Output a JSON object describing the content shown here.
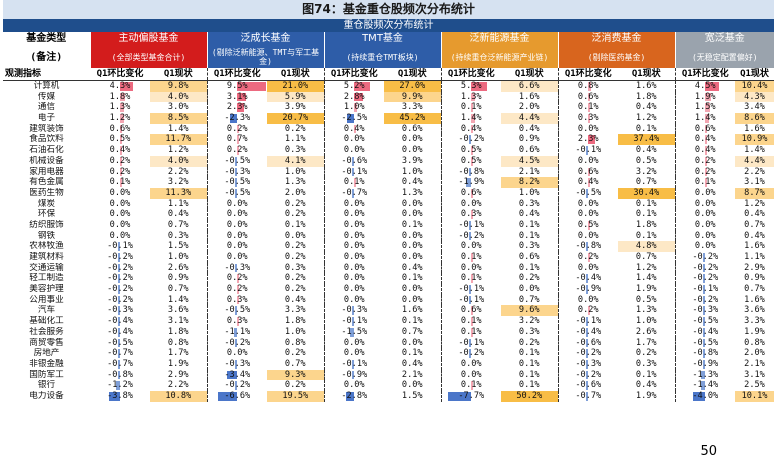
{
  "figure_title": "图74：基金重仓股频次分布统计",
  "table_banner": "重仓股频次分布统计",
  "labels": {
    "fund_type": "基金类型",
    "notes": "(备注)",
    "metric": "观测指标",
    "qoq": "Q1环比变化",
    "current": "Q1现状"
  },
  "page_number": "50",
  "group_colors": [
    "#d31c1c",
    "#2e5da8",
    "#2e5da8",
    "#e69a2e",
    "#d8651e",
    "#9aa3ad"
  ],
  "groups": [
    {
      "name": "主动偏股基金",
      "note": "(全部类型基金合计)"
    },
    {
      "name": "泛成长基金",
      "note": "(剔除泛新能源、TMT与军工基金)"
    },
    {
      "name": "TMT基金",
      "note": "(持续重仓TMT板块)"
    },
    {
      "name": "泛新能源基金",
      "note": "(持续重仓泛新能源产业链)"
    },
    {
      "name": "泛消费基金",
      "note": "(剔除医药基金)"
    },
    {
      "name": "宽泛基金",
      "note": "(无稳定配置偏好)"
    }
  ],
  "rows": [
    {
      "industry": "计算机",
      "values": [
        "4.3%",
        "9.8%",
        "9.5%",
        "21.0%",
        "5.2%",
        "27.0%",
        "5.3%",
        "6.6%",
        "0.8%",
        "1.6%",
        "4.5%",
        "10.4%"
      ]
    },
    {
      "industry": "传媒",
      "values": [
        "1.8%",
        "4.0%",
        "3.1%",
        "5.9%",
        "2.8%",
        "9.9%",
        "1.3%",
        "1.6%",
        "0.6%",
        "1.8%",
        "1.9%",
        "4.3%"
      ]
    },
    {
      "industry": "通信",
      "values": [
        "1.3%",
        "3.0%",
        "2.3%",
        "3.9%",
        "1.0%",
        "3.3%",
        "0.1%",
        "2.0%",
        "0.1%",
        "0.4%",
        "1.5%",
        "3.4%"
      ]
    },
    {
      "industry": "电子",
      "values": [
        "1.2%",
        "8.5%",
        "-2.3%",
        "20.7%",
        "-2.5%",
        "45.2%",
        "1.4%",
        "4.4%",
        "0.3%",
        "1.2%",
        "1.4%",
        "8.6%"
      ]
    },
    {
      "industry": "建筑装饰",
      "values": [
        "0.6%",
        "1.4%",
        "0.2%",
        "0.2%",
        "0.4%",
        "0.6%",
        "0.4%",
        "0.4%",
        "0.0%",
        "0.1%",
        "0.6%",
        "1.6%"
      ]
    },
    {
      "industry": "食品饮料",
      "values": [
        "0.5%",
        "11.7%",
        "0.7%",
        "1.1%",
        "0.0%",
        "0.0%",
        "-0.2%",
        "0.9%",
        "2.3%",
        "37.4%",
        "0.4%",
        "10.9%"
      ]
    },
    {
      "industry": "石油石化",
      "values": [
        "0.4%",
        "1.2%",
        "0.2%",
        "0.3%",
        "0.0%",
        "0.0%",
        "0.5%",
        "0.6%",
        "-0.1%",
        "0.4%",
        "0.4%",
        "1.4%"
      ]
    },
    {
      "industry": "机械设备",
      "values": [
        "0.2%",
        "4.0%",
        "-0.5%",
        "4.1%",
        "-0.6%",
        "3.9%",
        "0.5%",
        "4.5%",
        "0.0%",
        "0.5%",
        "0.2%",
        "4.4%"
      ]
    },
    {
      "industry": "家用电器",
      "values": [
        "0.2%",
        "2.2%",
        "-0.3%",
        "1.0%",
        "-0.1%",
        "1.0%",
        "-0.8%",
        "2.1%",
        "0.6%",
        "3.2%",
        "0.2%",
        "2.2%"
      ]
    },
    {
      "industry": "有色金属",
      "values": [
        "0.1%",
        "3.2%",
        "-0.5%",
        "1.3%",
        "0.1%",
        "0.4%",
        "-1.9%",
        "8.2%",
        "0.4%",
        "0.7%",
        "0.1%",
        "3.1%"
      ]
    },
    {
      "industry": "医药生物",
      "values": [
        "0.0%",
        "11.3%",
        "-0.5%",
        "2.0%",
        "-0.7%",
        "1.3%",
        "0.6%",
        "1.0%",
        "-0.5%",
        "30.4%",
        "0.0%",
        "8.7%"
      ]
    },
    {
      "industry": "煤炭",
      "values": [
        "0.0%",
        "1.1%",
        "0.0%",
        "0.2%",
        "0.0%",
        "0.0%",
        "0.0%",
        "0.3%",
        "0.0%",
        "0.1%",
        "0.0%",
        "1.2%"
      ]
    },
    {
      "industry": "环保",
      "values": [
        "0.0%",
        "0.4%",
        "0.0%",
        "0.2%",
        "0.0%",
        "0.0%",
        "0.3%",
        "0.4%",
        "0.0%",
        "0.1%",
        "0.0%",
        "0.4%"
      ]
    },
    {
      "industry": "纺织服饰",
      "values": [
        "0.0%",
        "0.7%",
        "0.0%",
        "0.1%",
        "0.0%",
        "0.1%",
        "-0.1%",
        "0.1%",
        "0.5%",
        "1.8%",
        "0.0%",
        "0.7%"
      ]
    },
    {
      "industry": "钢铁",
      "values": [
        "0.0%",
        "0.3%",
        "0.0%",
        "0.0%",
        "0.0%",
        "0.0%",
        "-0.2%",
        "0.1%",
        "0.0%",
        "0.1%",
        "0.0%",
        "0.4%"
      ]
    },
    {
      "industry": "农林牧渔",
      "values": [
        "-0.1%",
        "1.5%",
        "0.0%",
        "0.2%",
        "0.0%",
        "0.0%",
        "0.0%",
        "0.3%",
        "-0.8%",
        "4.8%",
        "0.0%",
        "1.6%"
      ]
    },
    {
      "industry": "建筑材料",
      "values": [
        "-0.2%",
        "1.0%",
        "0.0%",
        "0.2%",
        "0.0%",
        "0.0%",
        "0.1%",
        "0.6%",
        "0.2%",
        "0.7%",
        "-0.2%",
        "1.1%"
      ]
    },
    {
      "industry": "交通运输",
      "values": [
        "-0.2%",
        "2.6%",
        "-0.3%",
        "0.3%",
        "0.0%",
        "0.4%",
        "0.0%",
        "0.1%",
        "0.0%",
        "1.2%",
        "-0.2%",
        "2.9%"
      ]
    },
    {
      "industry": "轻工制造",
      "values": [
        "-0.2%",
        "0.9%",
        "0.2%",
        "0.2%",
        "0.0%",
        "0.1%",
        "0.1%",
        "0.2%",
        "-0.4%",
        "1.4%",
        "-0.2%",
        "0.9%"
      ]
    },
    {
      "industry": "美容护理",
      "values": [
        "-0.2%",
        "0.7%",
        "0.2%",
        "0.2%",
        "0.0%",
        "0.0%",
        "-0.1%",
        "0.0%",
        "-0.9%",
        "1.9%",
        "-0.1%",
        "0.7%"
      ]
    },
    {
      "industry": "公用事业",
      "values": [
        "-0.2%",
        "1.4%",
        "0.3%",
        "0.4%",
        "0.0%",
        "0.0%",
        "-0.1%",
        "0.7%",
        "0.0%",
        "0.5%",
        "-0.2%",
        "1.6%"
      ]
    },
    {
      "industry": "汽车",
      "values": [
        "-0.3%",
        "3.6%",
        "-0.5%",
        "3.3%",
        "-0.3%",
        "1.6%",
        "0.6%",
        "9.6%",
        "0.2%",
        "1.3%",
        "-0.3%",
        "3.6%"
      ]
    },
    {
      "industry": "基础化工",
      "values": [
        "-0.4%",
        "3.1%",
        "0.3%",
        "1.8%",
        "-0.1%",
        "0.1%",
        "0.1%",
        "3.2%",
        "-0.1%",
        "1.0%",
        "-0.5%",
        "3.3%"
      ]
    },
    {
      "industry": "社会服务",
      "values": [
        "-0.4%",
        "1.8%",
        "-1.1%",
        "1.0%",
        "-1.5%",
        "0.7%",
        "0.1%",
        "0.3%",
        "-0.4%",
        "2.6%",
        "-0.4%",
        "1.9%"
      ]
    },
    {
      "industry": "商贸零售",
      "values": [
        "-0.5%",
        "0.8%",
        "-0.2%",
        "0.8%",
        "0.0%",
        "0.0%",
        "-0.1%",
        "0.2%",
        "-0.6%",
        "1.7%",
        "-0.5%",
        "0.8%"
      ]
    },
    {
      "industry": "房地产",
      "values": [
        "-0.7%",
        "1.7%",
        "0.0%",
        "0.2%",
        "0.0%",
        "0.1%",
        "-0.2%",
        "0.1%",
        "-0.2%",
        "0.2%",
        "-0.8%",
        "2.0%"
      ]
    },
    {
      "industry": "非银金融",
      "values": [
        "-0.7%",
        "1.9%",
        "-0.3%",
        "0.7%",
        "-0.1%",
        "0.4%",
        "0.0%",
        "0.1%",
        "-0.3%",
        "0.3%",
        "-0.9%",
        "2.1%"
      ]
    },
    {
      "industry": "国防军工",
      "values": [
        "-0.8%",
        "2.9%",
        "-3.4%",
        "9.3%",
        "-0.9%",
        "2.1%",
        "0.0%",
        "0.1%",
        "-0.2%",
        "0.1%",
        "-1.3%",
        "3.1%"
      ]
    },
    {
      "industry": "银行",
      "values": [
        "-1.2%",
        "2.2%",
        "-0.2%",
        "0.2%",
        "0.0%",
        "0.0%",
        "0.1%",
        "0.1%",
        "-0.6%",
        "0.4%",
        "-1.4%",
        "2.5%"
      ]
    },
    {
      "industry": "电力设备",
      "values": [
        "-3.8%",
        "10.8%",
        "-6.6%",
        "19.5%",
        "-2.8%",
        "1.5%",
        "-7.7%",
        "50.2%",
        "-0.7%",
        "1.9%",
        "-4.0%",
        "10.1%"
      ]
    }
  ]
}
